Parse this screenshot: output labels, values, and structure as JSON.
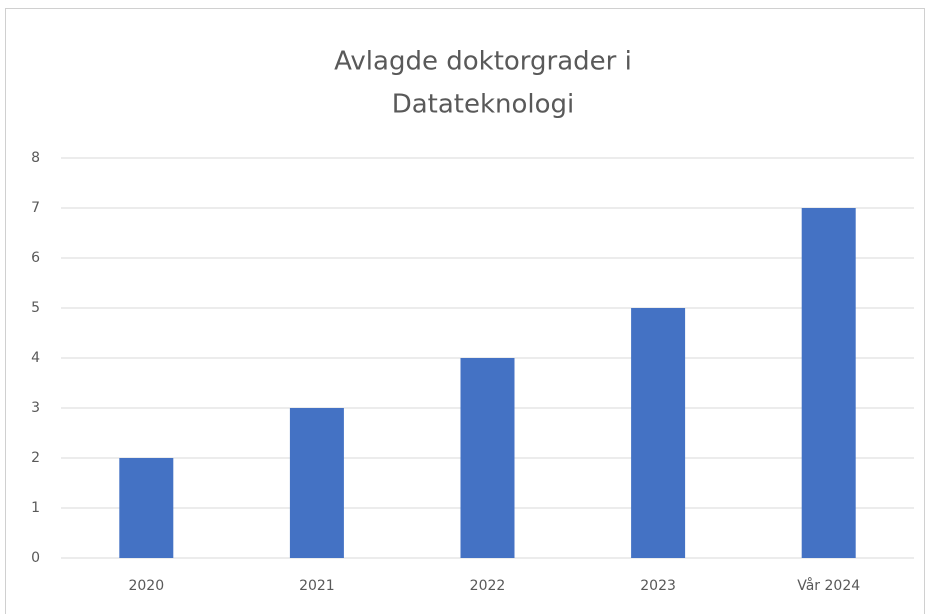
{
  "chart_data": {
    "type": "bar",
    "title": [
      "Avlagde doktorgrader i",
      "Datateknologi"
    ],
    "categories": [
      "2020",
      "2021",
      "2022",
      "2023",
      "Vår 2024"
    ],
    "values": [
      2,
      3,
      4,
      5,
      7
    ],
    "color": "#4472c4",
    "ylim": [
      0,
      8
    ],
    "yticks": [
      0,
      1,
      2,
      3,
      4,
      5,
      6,
      7,
      8
    ],
    "grid": true
  }
}
